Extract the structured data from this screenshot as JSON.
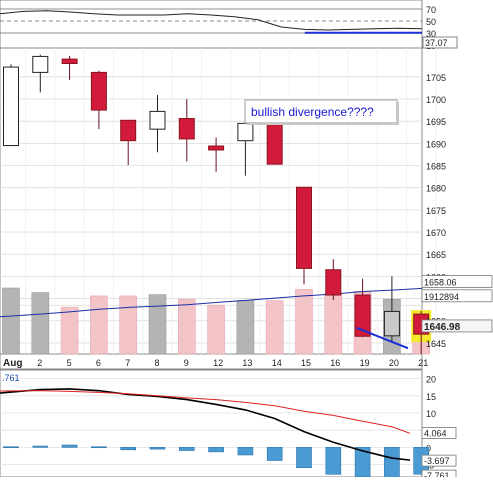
{
  "chart_data": [
    {
      "type": "line",
      "title": "",
      "y_ticks": [
        70,
        50,
        30,
        10
      ],
      "ylim": [
        5,
        85
      ],
      "series": [
        {
          "values": [
            62,
            66,
            67,
            65,
            62,
            60,
            60,
            60,
            62,
            60,
            57,
            52,
            40,
            36,
            35,
            36,
            37,
            38,
            37
          ]
        }
      ],
      "levels": [
        70,
        50,
        30
      ],
      "midline": 50,
      "last_value_label": "37.07",
      "annotation": {
        "kind": "trendline",
        "from": [
          13,
          37
        ],
        "to": [
          18,
          37
        ]
      }
    },
    {
      "type": "candlestick",
      "x_tick_labels": [
        "Aug",
        "2",
        "5",
        "6",
        "7",
        "8",
        "9",
        "12",
        "13",
        "14",
        "15",
        "16",
        "19",
        "20",
        "21"
      ],
      "y_ticks": [
        1705,
        1700,
        1695,
        1690,
        1685,
        1680,
        1675,
        1670,
        1665,
        1660,
        1655,
        1650,
        1645
      ],
      "y_tick_labels": [
        "1705",
        "1700",
        "1695",
        "1690",
        "1685",
        "1680",
        "1675",
        "1670",
        "1665",
        "1660",
        "",
        "1650",
        "1645"
      ],
      "ylim": [
        1642.5,
        1711.5
      ],
      "candles": [
        {
          "x": "1",
          "open": 1689.5,
          "close": 1707.2,
          "high": 1707.8,
          "low": 1689.5
        },
        {
          "x": "2",
          "open": 1706.0,
          "close": 1709.6,
          "high": 1710.0,
          "low": 1701.5
        },
        {
          "x": "5",
          "open": 1709.0,
          "close": 1708.0,
          "high": 1709.7,
          "low": 1704.3
        },
        {
          "x": "6",
          "open": 1706.0,
          "close": 1697.5,
          "high": 1706.4,
          "low": 1693.2
        },
        {
          "x": "7",
          "open": 1695.2,
          "close": 1690.6,
          "high": 1695.2,
          "low": 1685.1
        },
        {
          "x": "8",
          "open": 1693.2,
          "close": 1697.2,
          "high": 1700.9,
          "low": 1688.0
        },
        {
          "x": "9",
          "open": 1695.6,
          "close": 1691.0,
          "high": 1700.0,
          "low": 1685.9
        },
        {
          "x": "12",
          "open": 1689.4,
          "close": 1688.5,
          "high": 1691.3,
          "low": 1683.6
        },
        {
          "x": "13",
          "open": 1690.6,
          "close": 1694.5,
          "high": 1697.6,
          "low": 1682.7
        },
        {
          "x": "14",
          "open": 1694.2,
          "close": 1685.3,
          "high": 1694.2,
          "low": 1685.3
        },
        {
          "x": "15",
          "open": 1680.1,
          "close": 1661.8,
          "high": 1680.1,
          "low": 1658.2
        },
        {
          "x": "16",
          "open": 1661.5,
          "close": 1655.8,
          "high": 1663.9,
          "low": 1654.7
        },
        {
          "x": "19",
          "open": 1655.8,
          "close": 1646.5,
          "high": 1659.5,
          "low": 1646.3
        },
        {
          "x": "20",
          "open": 1646.6,
          "close": 1652.1,
          "high": 1660.0,
          "low": 1645.3
        },
        {
          "x": "21",
          "open": 1651.5,
          "close": 1646.98,
          "high": 1652.2,
          "low": 1642.5
        }
      ],
      "volume": [
        {
          "x": "1",
          "value": 1.0,
          "direction": "up"
        },
        {
          "x": "2",
          "value": 0.93,
          "direction": "up"
        },
        {
          "x": "5",
          "value": 0.71,
          "direction": "down"
        },
        {
          "x": "6",
          "value": 0.88,
          "direction": "down"
        },
        {
          "x": "7",
          "value": 0.88,
          "direction": "down"
        },
        {
          "x": "8",
          "value": 0.9,
          "direction": "up"
        },
        {
          "x": "9",
          "value": 0.83,
          "direction": "down"
        },
        {
          "x": "12",
          "value": 0.74,
          "direction": "down"
        },
        {
          "x": "13",
          "value": 0.81,
          "direction": "up"
        },
        {
          "x": "14",
          "value": 0.81,
          "direction": "down"
        },
        {
          "x": "15",
          "value": 0.98,
          "direction": "down"
        },
        {
          "x": "16",
          "value": 0.92,
          "direction": "down"
        },
        {
          "x": "19",
          "value": 0.95,
          "direction": "down"
        },
        {
          "x": "20",
          "value": 0.83,
          "direction": "up"
        },
        {
          "x": "21",
          "value": 0.55,
          "direction": "down"
        }
      ],
      "moving_average": [
        1650.9,
        1651.5,
        1652.0,
        1652.6,
        1653.0,
        1653.3,
        1653.6,
        1654.1,
        1654.6,
        1655.1,
        1655.6,
        1656.0,
        1656.6,
        1656.9,
        1657.3
      ],
      "value_labels": [
        {
          "text": "1658.06",
          "style": "plain"
        },
        {
          "text": "1912894",
          "style": "plain"
        },
        {
          "text": "1646.98",
          "style": "bold"
        }
      ],
      "annotation": {
        "text": "bullish divergence????",
        "trendline": {
          "from": [
            "19",
            1648.4
          ],
          "to": [
            "21",
            1643.8
          ]
        }
      }
    },
    {
      "type": "line",
      "y_ticks": [
        20,
        15,
        10,
        5,
        0,
        -5
      ],
      "ylim": [
        -8.6,
        22.5
      ],
      "series": [
        {
          "values": [
            15.8,
            16.8,
            17.0,
            16.5,
            15.4,
            14.8,
            13.9,
            12.5,
            10.9,
            8.4,
            4.6,
            1.5,
            -1.0,
            -3.1,
            -3.7
          ]
        },
        {
          "values": [
            16.4,
            16.5,
            16.3,
            16.0,
            15.6,
            15.0,
            14.4,
            13.9,
            13.1,
            12.1,
            10.5,
            9.3,
            7.6,
            6.0,
            4.1
          ]
        }
      ],
      "histogram": [
        0.2,
        0.4,
        0.7,
        0.2,
        -0.7,
        -0.5,
        -0.9,
        -1.3,
        -2.2,
        -3.8,
        -5.9,
        -7.8,
        -8.6,
        -9.1,
        -7.8
      ],
      "value_labels": [
        "4.064",
        "-3.697",
        "-7.761"
      ],
      "partial_top_label": ".761",
      "colors": {
        "line": "#000000",
        "signal": "#e02020",
        "histogram": "#4a9bd4"
      }
    }
  ]
}
